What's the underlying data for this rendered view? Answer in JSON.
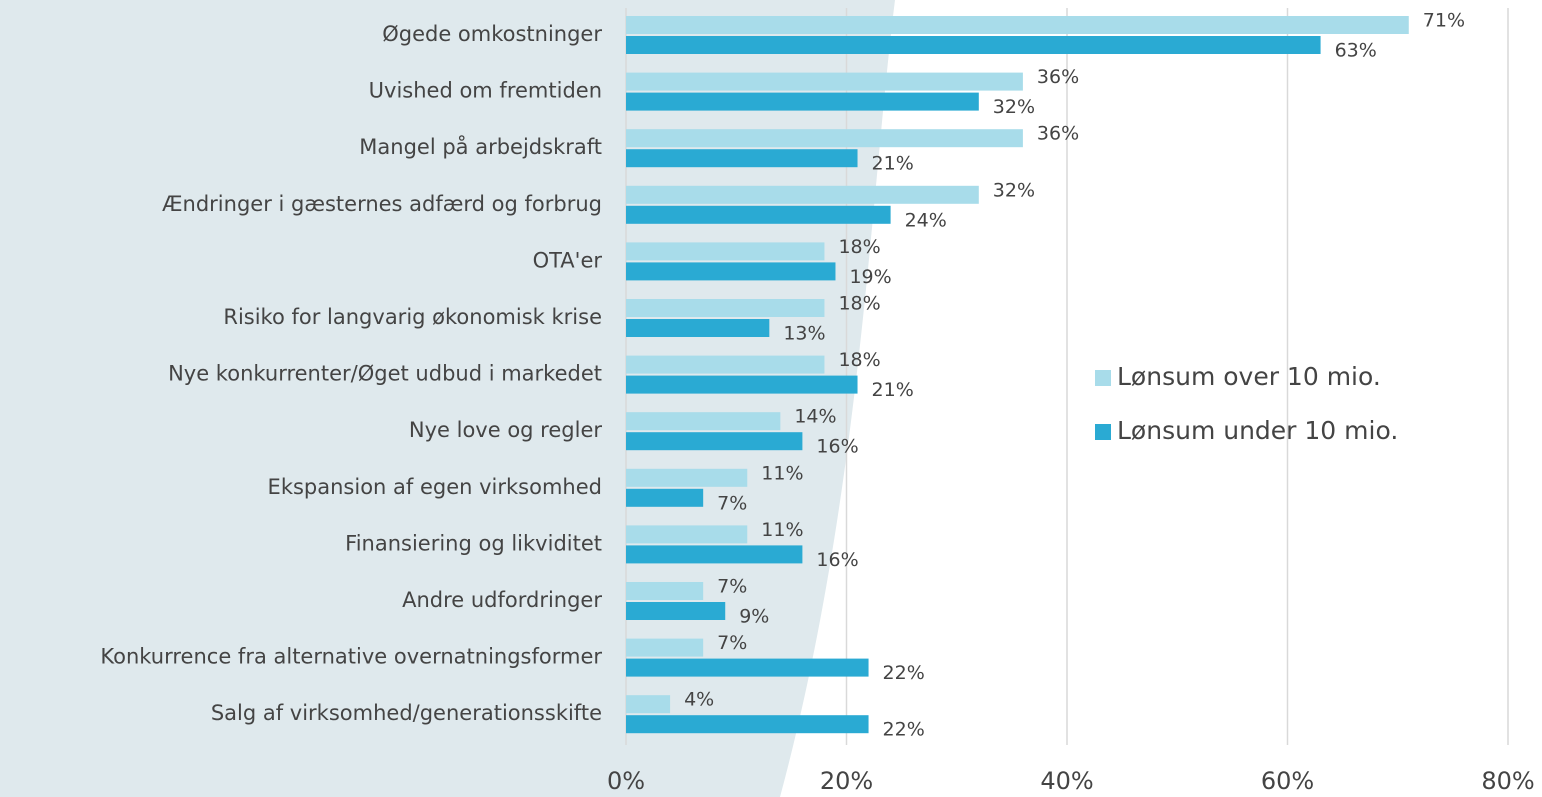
{
  "chart_data": {
    "type": "hbar",
    "categories": [
      "Øgede omkostninger",
      "Uvished om fremtiden",
      "Mangel på arbejdskraft",
      "Ændringer i gæsternes adfærd og forbrug",
      "OTA'er",
      "Risiko for langvarig økonomisk krise",
      "Nye konkurrenter/Øget udbud i markedet",
      "Nye love og regler",
      "Ekspansion af egen virksomhed",
      "Finansiering og likviditet",
      "Andre udfordringer",
      "Konkurrence fra alternative overnatningsformer",
      "Salg af virksomhed/generationsskifte"
    ],
    "series": [
      {
        "name": "Lønsum over 10 mio.",
        "color": "#a8dcea",
        "values": [
          71,
          36,
          36,
          32,
          18,
          18,
          18,
          14,
          11,
          11,
          7,
          7,
          4
        ],
        "value_labels": [
          "71%",
          "36%",
          "36%",
          "32%",
          "18%",
          "18%",
          "18%",
          "14%",
          "11%",
          "11%",
          "7%",
          "7%",
          "4%"
        ]
      },
      {
        "name": "Lønsum under 10 mio.",
        "color": "#2aaad3",
        "values": [
          63,
          32,
          21,
          24,
          19,
          13,
          21,
          16,
          7,
          16,
          9,
          22,
          22
        ],
        "value_labels": [
          "63%",
          "32%",
          "21%",
          "24%",
          "19%",
          "13%",
          "21%",
          "16%",
          "7%",
          "16%",
          "9%",
          "22%",
          "22%"
        ]
      }
    ],
    "xlim": [
      0,
      80
    ],
    "xticks": [
      {
        "value": 0,
        "label": "0%"
      },
      {
        "value": 20,
        "label": "20%"
      },
      {
        "value": 40,
        "label": "40%"
      },
      {
        "value": 60,
        "label": "60%"
      },
      {
        "value": 80,
        "label": "80%"
      }
    ],
    "grid": true,
    "legend": "right"
  }
}
